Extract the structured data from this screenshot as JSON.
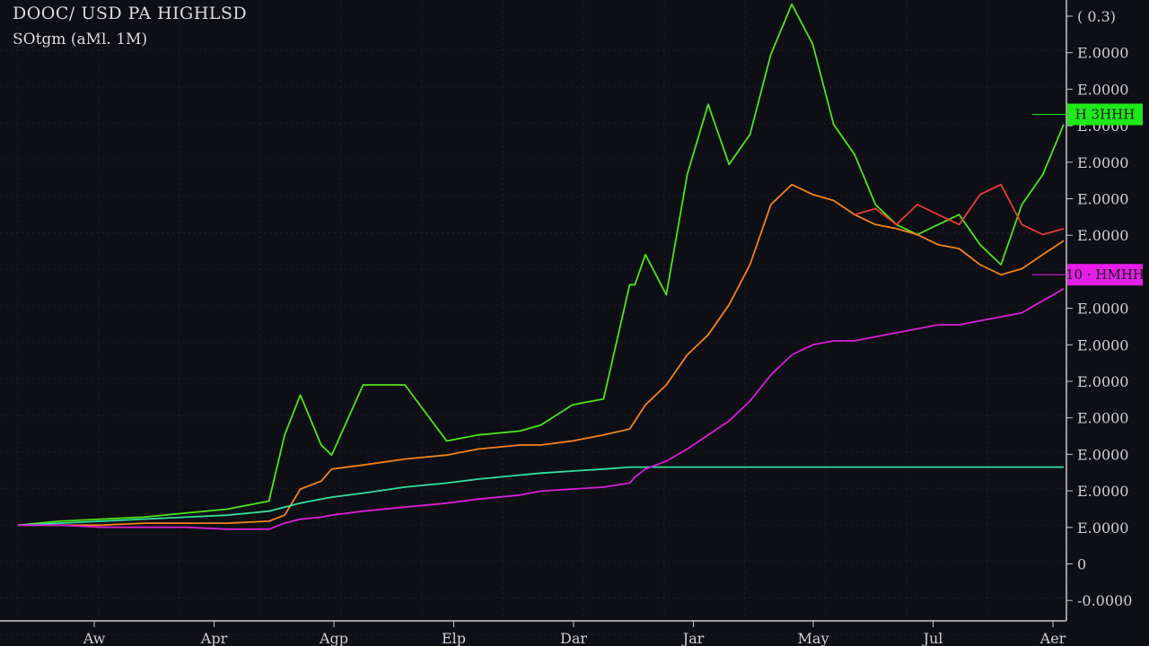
{
  "header": {
    "title": "DOOC/ USD PA HIGHLSD",
    "subtitle": "SOtgm (aMl. 1M)",
    "top_right_label": "( 0.3)"
  },
  "colors": {
    "background": "#0e0f15",
    "grid": "#1c1f2a",
    "axis": "#c8c8c8",
    "green": "#4ee31a",
    "orange": "#f2821e",
    "magenta": "#d81ed6",
    "teal": "#32e0a0",
    "red": "#e83a3a",
    "yellow": "#d6c21e",
    "green_badge": "#1ee81a",
    "magenta_badge": "#e41ee8"
  },
  "chart_data": {
    "type": "line",
    "title": "DOOC/ USD PA HIGHLSD",
    "subtitle": "SOtgm (aMl. 1M)",
    "xlabel": "",
    "ylabel": "",
    "grid": true,
    "x_tick_labels": [
      "Aw",
      "Apr",
      "Agp",
      "Elp",
      "Dar",
      "Jar",
      "May",
      "Jul",
      "Aer"
    ],
    "y_tick_labels": [
      "( 0.3)",
      "E.0000",
      "E.0000",
      "E.0000",
      "E.0000",
      "E.0000",
      "E.0000",
      "E.0000",
      "E.0000",
      "E.0000",
      "E.0000",
      "E.0000",
      "E.0000",
      "E.0000",
      "E.0000",
      "0",
      "-0.0000"
    ],
    "x": [
      0,
      0.04,
      0.08,
      0.12,
      0.16,
      0.2,
      0.24,
      0.255,
      0.27,
      0.29,
      0.3,
      0.33,
      0.37,
      0.41,
      0.44,
      0.48,
      0.5,
      0.53,
      0.56,
      0.585,
      0.59,
      0.6,
      0.62,
      0.64,
      0.66,
      0.68,
      0.7,
      0.72,
      0.74,
      0.76,
      0.78,
      0.8,
      0.82,
      0.84,
      0.86,
      0.88,
      0.9,
      0.92,
      0.94,
      0.96,
      0.98,
      1.0
    ],
    "series": [
      {
        "name": "",
        "color": "green",
        "values": [
          0,
          2,
          3,
          4,
          6,
          8,
          12,
          45,
          65,
          40,
          35,
          70,
          70,
          42,
          45,
          47,
          50,
          60,
          63,
          120,
          120,
          135,
          115,
          175,
          210,
          180,
          195,
          235,
          260,
          240,
          200,
          185,
          160,
          150,
          145,
          150,
          155,
          140,
          130,
          160,
          175,
          200
        ]
      },
      {
        "name": "",
        "color": "orange",
        "values": [
          0,
          0,
          0,
          1,
          1,
          1,
          2,
          5,
          18,
          22,
          28,
          30,
          33,
          35,
          38,
          40,
          40,
          42,
          45,
          48,
          52,
          60,
          70,
          85,
          95,
          110,
          130,
          160,
          170,
          165,
          162,
          155,
          150,
          148,
          145,
          140,
          138,
          130,
          125,
          128,
          135,
          142
        ]
      },
      {
        "name": "",
        "color": "teal",
        "values": [
          0,
          1,
          2,
          3,
          4,
          5,
          7,
          9,
          11,
          13,
          14,
          16,
          19,
          21,
          23,
          25,
          26,
          27,
          28,
          29,
          29,
          29,
          29,
          29,
          29,
          29,
          29,
          29,
          29,
          29,
          29,
          29,
          29,
          29,
          29,
          29,
          29,
          29,
          29,
          29,
          29,
          29
        ]
      },
      {
        "name": "",
        "color": "magenta",
        "values": [
          0,
          0,
          -1,
          -1,
          -1,
          -2,
          -2,
          1,
          3,
          4,
          5,
          7,
          9,
          11,
          13,
          15,
          17,
          18,
          19,
          21,
          24,
          28,
          32,
          38,
          45,
          52,
          62,
          75,
          85,
          90,
          92,
          92,
          94,
          96,
          98,
          100,
          100,
          102,
          104,
          106,
          112,
          118
        ]
      },
      {
        "name": "",
        "color": "red",
        "values": [
          null,
          null,
          null,
          null,
          null,
          null,
          null,
          null,
          null,
          null,
          null,
          null,
          null,
          null,
          null,
          null,
          null,
          null,
          null,
          null,
          null,
          null,
          null,
          null,
          null,
          null,
          null,
          null,
          null,
          null,
          null,
          155,
          158,
          150,
          160,
          155,
          150,
          165,
          170,
          150,
          145,
          148
        ]
      }
    ],
    "ylim": [
      -20,
      280
    ],
    "badges": [
      {
        "text": "H 3HHH",
        "color": "green_badge",
        "value": 205
      },
      {
        "text": "10 · HMHH",
        "color": "magenta_badge",
        "value": 125
      }
    ]
  }
}
